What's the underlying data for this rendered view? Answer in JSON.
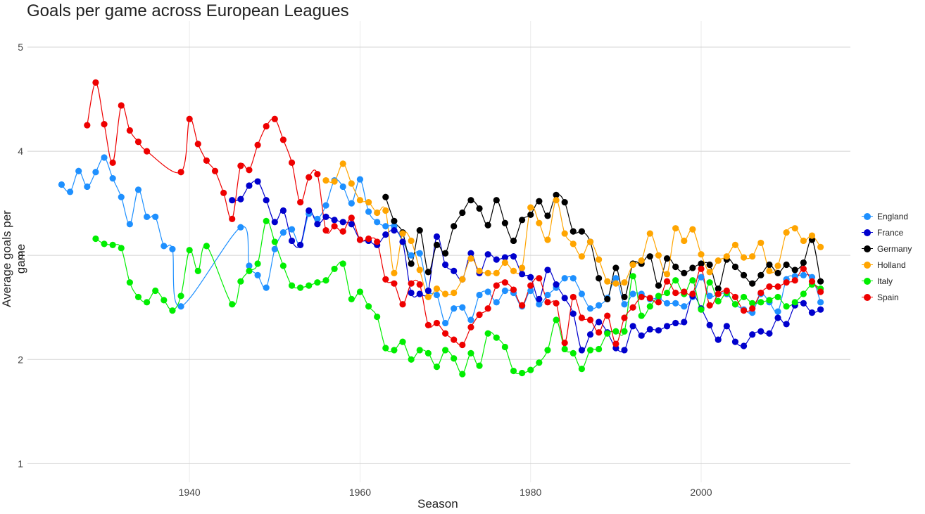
{
  "chart_data": {
    "type": "scatter",
    "title": "Goals per game across European Leagues",
    "xlabel": "Season",
    "ylabel": "Average goals per game",
    "xlim": [
      1921,
      2017.5
    ],
    "ylim": [
      0.82,
      5.25
    ],
    "xticks": [
      1940,
      1960,
      1980,
      2000
    ],
    "yticks": [
      1,
      2,
      3,
      4,
      5
    ],
    "grid": true,
    "legend_position": "right",
    "smooth_lines": true,
    "series": [
      {
        "name": "England",
        "color": "#1E90FF",
        "x": [
          1925,
          1926,
          1927,
          1928,
          1929,
          1930,
          1931,
          1932,
          1933,
          1934,
          1935,
          1936,
          1937,
          1938,
          1939,
          1946,
          1947,
          1948,
          1949,
          1950,
          1951,
          1952,
          1953,
          1954,
          1955,
          1956,
          1957,
          1958,
          1959,
          1960,
          1961,
          1962,
          1963,
          1964,
          1965,
          1966,
          1967,
          1968,
          1969,
          1970,
          1971,
          1972,
          1973,
          1974,
          1975,
          1976,
          1977,
          1978,
          1979,
          1980,
          1981,
          1982,
          1983,
          1984,
          1985,
          1986,
          1987,
          1988,
          1989,
          1990,
          1991,
          1992,
          1993,
          1994,
          1995,
          1996,
          1997,
          1998,
          1999,
          2000,
          2001,
          2002,
          2003,
          2004,
          2005,
          2006,
          2007,
          2008,
          2009,
          2010,
          2011,
          2012,
          2013,
          2014
        ],
        "y": [
          3.68,
          3.61,
          3.81,
          3.66,
          3.8,
          3.94,
          3.74,
          3.56,
          3.3,
          3.63,
          3.37,
          3.37,
          3.09,
          3.06,
          2.51,
          3.27,
          2.9,
          2.81,
          2.69,
          3.06,
          3.22,
          3.25,
          3.1,
          3.4,
          3.35,
          3.48,
          3.72,
          3.66,
          3.5,
          3.73,
          3.42,
          3.32,
          3.28,
          3.28,
          3.13,
          3.0,
          3.02,
          2.66,
          2.62,
          2.35,
          2.49,
          2.5,
          2.38,
          2.62,
          2.65,
          2.55,
          2.66,
          2.64,
          2.51,
          2.66,
          2.53,
          2.62,
          2.69,
          2.78,
          2.78,
          2.63,
          2.49,
          2.52,
          2.59,
          2.78,
          2.53,
          2.63,
          2.63,
          2.58,
          2.59,
          2.54,
          2.54,
          2.51,
          2.6,
          2.79,
          2.61,
          2.63,
          2.63,
          2.53,
          2.48,
          2.45,
          2.63,
          2.55,
          2.46,
          2.77,
          2.8,
          2.81,
          2.79,
          2.55
        ]
      },
      {
        "name": "France",
        "color": "#0000CD",
        "x": [
          1945,
          1946,
          1947,
          1948,
          1949,
          1950,
          1951,
          1952,
          1953,
          1954,
          1955,
          1956,
          1957,
          1958,
          1959,
          1960,
          1961,
          1962,
          1963,
          1964,
          1965,
          1966,
          1967,
          1968,
          1969,
          1970,
          1971,
          1972,
          1973,
          1974,
          1975,
          1976,
          1977,
          1978,
          1979,
          1980,
          1981,
          1982,
          1983,
          1984,
          1985,
          1986,
          1987,
          1988,
          1989,
          1990,
          1991,
          1992,
          1993,
          1994,
          1995,
          1996,
          1997,
          1998,
          1999,
          2000,
          2001,
          2002,
          2003,
          2004,
          2005,
          2006,
          2007,
          2008,
          2009,
          2010,
          2011,
          2012,
          2013,
          2014
        ],
        "y": [
          3.53,
          3.54,
          3.67,
          3.71,
          3.53,
          3.32,
          3.43,
          3.14,
          3.1,
          3.43,
          3.3,
          3.37,
          3.34,
          3.32,
          3.3,
          3.15,
          3.14,
          3.1,
          3.2,
          3.24,
          3.13,
          2.64,
          2.63,
          2.66,
          3.18,
          2.91,
          2.85,
          2.77,
          3.02,
          2.83,
          3.01,
          2.96,
          2.98,
          2.99,
          2.82,
          2.79,
          2.58,
          2.86,
          2.72,
          2.59,
          2.44,
          2.09,
          2.24,
          2.36,
          2.26,
          2.11,
          2.09,
          2.32,
          2.23,
          2.29,
          2.28,
          2.32,
          2.35,
          2.36,
          2.61,
          2.49,
          2.33,
          2.19,
          2.32,
          2.17,
          2.13,
          2.24,
          2.27,
          2.25,
          2.4,
          2.34,
          2.52,
          2.54,
          2.45,
          2.48
        ]
      },
      {
        "name": "Germany",
        "color": "#000000",
        "x": [
          1963,
          1964,
          1965,
          1966,
          1967,
          1968,
          1969,
          1970,
          1971,
          1972,
          1973,
          1974,
          1975,
          1976,
          1977,
          1978,
          1979,
          1980,
          1981,
          1982,
          1983,
          1984,
          1985,
          1986,
          1987,
          1988,
          1989,
          1990,
          1991,
          1992,
          1993,
          1994,
          1995,
          1996,
          1997,
          1998,
          1999,
          2000,
          2001,
          2002,
          2003,
          2004,
          2005,
          2006,
          2007,
          2008,
          2009,
          2010,
          2011,
          2012,
          2013,
          2014
        ],
        "y": [
          3.56,
          3.33,
          3.22,
          2.92,
          3.24,
          2.84,
          3.1,
          3.02,
          3.28,
          3.41,
          3.53,
          3.45,
          3.29,
          3.53,
          3.31,
          3.14,
          3.34,
          3.39,
          3.52,
          3.38,
          3.58,
          3.51,
          3.23,
          3.23,
          3.13,
          2.78,
          2.58,
          2.88,
          2.6,
          2.92,
          2.92,
          2.99,
          2.71,
          2.97,
          2.89,
          2.83,
          2.88,
          2.92,
          2.91,
          2.68,
          2.96,
          2.89,
          2.81,
          2.73,
          2.81,
          2.91,
          2.83,
          2.91,
          2.86,
          2.93,
          3.15,
          2.75
        ]
      },
      {
        "name": "Holland",
        "color": "#FFA500",
        "x": [
          1956,
          1957,
          1958,
          1959,
          1960,
          1961,
          1962,
          1963,
          1964,
          1965,
          1966,
          1967,
          1968,
          1969,
          1970,
          1971,
          1972,
          1973,
          1974,
          1975,
          1976,
          1977,
          1978,
          1979,
          1980,
          1981,
          1982,
          1983,
          1984,
          1985,
          1986,
          1987,
          1988,
          1989,
          1990,
          1991,
          1992,
          1993,
          1994,
          1995,
          1996,
          1997,
          1998,
          1999,
          2000,
          2001,
          2002,
          2003,
          2004,
          2005,
          2006,
          2007,
          2008,
          2009,
          2010,
          2011,
          2012,
          2013,
          2014
        ],
        "y": [
          3.72,
          3.71,
          3.88,
          3.69,
          3.53,
          3.51,
          3.41,
          3.43,
          2.83,
          3.21,
          3.14,
          2.86,
          2.6,
          2.68,
          2.63,
          2.64,
          2.77,
          2.97,
          2.85,
          2.83,
          2.83,
          2.93,
          2.85,
          2.88,
          3.46,
          3.31,
          3.15,
          3.53,
          3.21,
          3.11,
          2.99,
          3.13,
          2.96,
          2.75,
          2.73,
          2.74,
          2.91,
          2.95,
          3.21,
          3.0,
          2.82,
          3.26,
          3.14,
          3.25,
          3.01,
          2.84,
          2.95,
          2.99,
          3.1,
          2.98,
          2.99,
          3.12,
          2.85,
          2.9,
          3.22,
          3.26,
          3.14,
          3.19,
          3.08
        ]
      },
      {
        "name": "Italy",
        "color": "#00EE00",
        "x": [
          1929,
          1930,
          1931,
          1932,
          1933,
          1934,
          1935,
          1936,
          1937,
          1938,
          1939,
          1940,
          1941,
          1942,
          1945,
          1946,
          1947,
          1948,
          1949,
          1950,
          1951,
          1952,
          1953,
          1954,
          1955,
          1956,
          1957,
          1958,
          1959,
          1960,
          1961,
          1962,
          1963,
          1964,
          1965,
          1966,
          1967,
          1968,
          1969,
          1970,
          1971,
          1972,
          1973,
          1974,
          1975,
          1976,
          1977,
          1978,
          1979,
          1980,
          1981,
          1982,
          1983,
          1984,
          1985,
          1986,
          1987,
          1988,
          1989,
          1990,
          1991,
          1992,
          1993,
          1994,
          1995,
          1996,
          1997,
          1998,
          1999,
          2000,
          2001,
          2002,
          2003,
          2004,
          2005,
          2006,
          2007,
          2008,
          2009,
          2010,
          2011,
          2012,
          2013,
          2014
        ],
        "y": [
          3.16,
          3.11,
          3.1,
          3.07,
          2.74,
          2.6,
          2.55,
          2.66,
          2.57,
          2.47,
          2.61,
          3.05,
          2.85,
          3.09,
          2.53,
          2.75,
          2.85,
          2.92,
          3.33,
          3.13,
          2.9,
          2.71,
          2.69,
          2.71,
          2.74,
          2.76,
          2.87,
          2.92,
          2.58,
          2.65,
          2.51,
          2.41,
          2.11,
          2.09,
          2.17,
          2.0,
          2.09,
          2.06,
          1.93,
          2.09,
          2.01,
          1.86,
          2.06,
          1.94,
          2.25,
          2.21,
          2.12,
          1.89,
          1.87,
          1.9,
          1.97,
          2.09,
          2.38,
          2.1,
          2.06,
          1.91,
          2.09,
          2.1,
          2.25,
          2.27,
          2.27,
          2.8,
          2.42,
          2.51,
          2.61,
          2.64,
          2.76,
          2.63,
          2.76,
          2.48,
          2.74,
          2.56,
          2.64,
          2.53,
          2.6,
          2.54,
          2.55,
          2.57,
          2.6,
          2.51,
          2.55,
          2.63,
          2.72,
          2.68
        ]
      },
      {
        "name": "Spain",
        "color": "#EE0000",
        "x": [
          1928,
          1929,
          1930,
          1931,
          1932,
          1933,
          1934,
          1935,
          1939,
          1940,
          1941,
          1942,
          1943,
          1944,
          1945,
          1946,
          1947,
          1948,
          1949,
          1950,
          1951,
          1952,
          1953,
          1954,
          1955,
          1956,
          1957,
          1958,
          1959,
          1960,
          1961,
          1962,
          1963,
          1964,
          1965,
          1966,
          1967,
          1968,
          1969,
          1970,
          1971,
          1972,
          1973,
          1974,
          1975,
          1976,
          1977,
          1978,
          1979,
          1980,
          1981,
          1982,
          1983,
          1984,
          1985,
          1986,
          1987,
          1988,
          1989,
          1990,
          1991,
          1992,
          1993,
          1994,
          1995,
          1996,
          1997,
          1998,
          1999,
          2000,
          2001,
          2002,
          2003,
          2004,
          2005,
          2006,
          2007,
          2008,
          2009,
          2010,
          2011,
          2012,
          2013,
          2014
        ],
        "y": [
          4.25,
          4.66,
          4.26,
          3.89,
          4.44,
          4.2,
          4.09,
          4.0,
          3.8,
          4.31,
          4.07,
          3.91,
          3.81,
          3.6,
          3.35,
          3.86,
          3.82,
          4.06,
          4.24,
          4.31,
          4.11,
          3.89,
          3.51,
          3.75,
          3.78,
          3.24,
          3.28,
          3.23,
          3.36,
          3.15,
          3.16,
          3.13,
          2.77,
          2.73,
          2.53,
          2.73,
          2.72,
          2.33,
          2.35,
          2.25,
          2.19,
          2.14,
          2.31,
          2.43,
          2.49,
          2.71,
          2.74,
          2.67,
          2.52,
          2.71,
          2.78,
          2.55,
          2.54,
          2.16,
          2.6,
          2.4,
          2.38,
          2.26,
          2.42,
          2.15,
          2.4,
          2.5,
          2.6,
          2.59,
          2.55,
          2.75,
          2.64,
          2.65,
          2.63,
          2.87,
          2.52,
          2.63,
          2.66,
          2.6,
          2.47,
          2.49,
          2.64,
          2.7,
          2.7,
          2.74,
          2.76,
          2.87,
          2.75,
          2.65
        ]
      }
    ]
  }
}
